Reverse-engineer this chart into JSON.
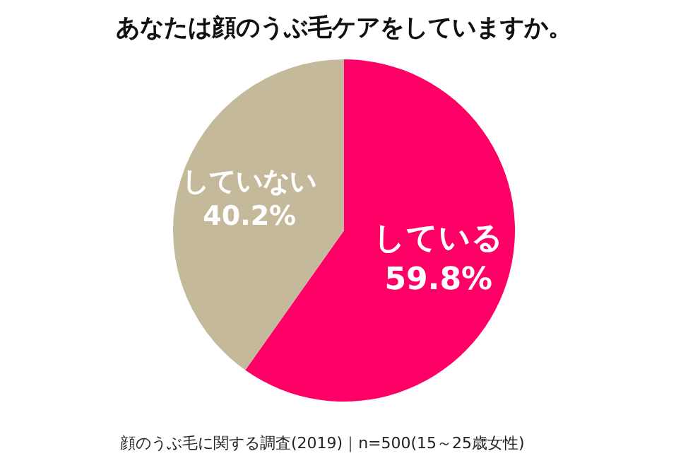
{
  "chart_data": {
    "type": "pie",
    "title": "あなたは顔のうぶ毛ケアをしていますか。",
    "categories": [
      "している",
      "していない"
    ],
    "values": [
      59.8,
      40.2
    ],
    "colors": [
      "#ff0066",
      "#c4b99a"
    ],
    "value_labels": [
      "59.8%",
      "40.2%"
    ],
    "legend": false,
    "annotations": [
      "顔のうぶ毛に関する調査(2019)｜n=500(15～25歳女性)"
    ]
  }
}
